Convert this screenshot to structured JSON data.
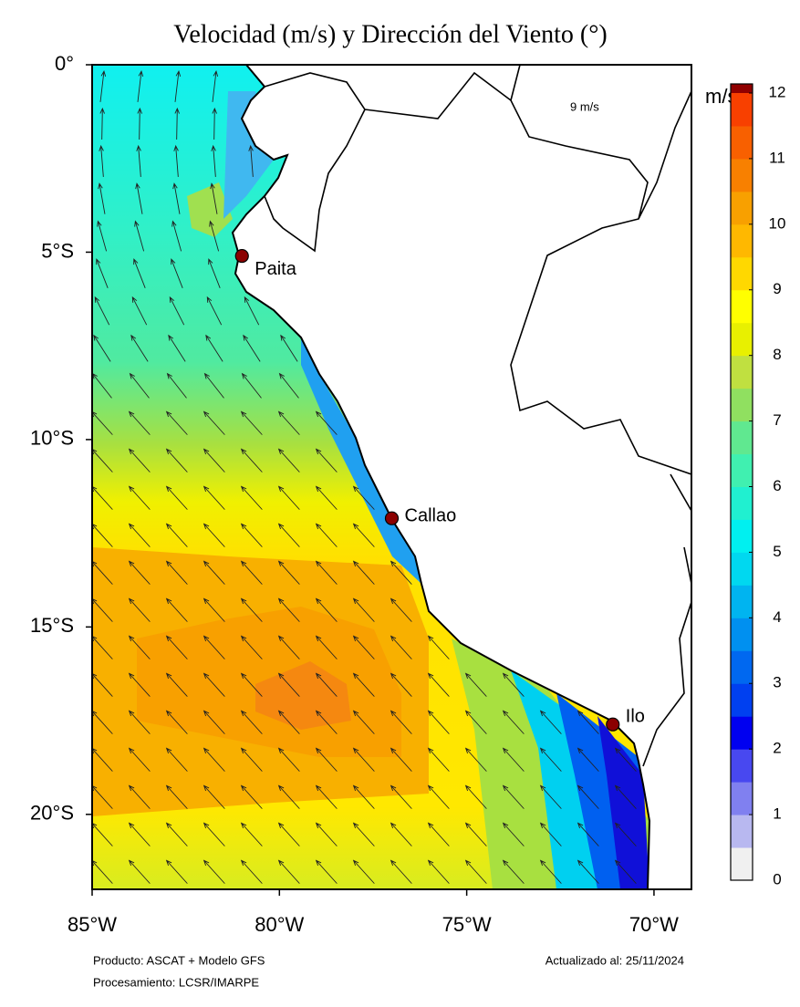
{
  "map": {
    "title": "Velocidad (m/s) y Dirección del Viento (°)",
    "xlim": [
      -85,
      -69
    ],
    "ylim": [
      -22,
      0
    ],
    "xticks": [
      {
        "value": -85,
        "label": "85°W"
      },
      {
        "value": -80,
        "label": "80°W"
      },
      {
        "value": -75,
        "label": "75°W"
      },
      {
        "value": -70,
        "label": "70°W"
      }
    ],
    "yticks": [
      {
        "value": 0,
        "label": "0°"
      },
      {
        "value": -5,
        "label": "5°S"
      },
      {
        "value": -10,
        "label": "10°S"
      },
      {
        "value": -15,
        "label": "15°S"
      },
      {
        "value": -20,
        "label": "20°S"
      }
    ],
    "cities": [
      {
        "name": "Paita",
        "lon": -81.0,
        "lat": -5.1
      },
      {
        "name": "Callao",
        "lon": -77.0,
        "lat": -12.1
      },
      {
        "name": "Ilo",
        "lon": -71.1,
        "lat": -17.6
      }
    ],
    "reference_arrow": "9 m/s",
    "colorbar": {
      "unit": "m/s",
      "lim": [
        0,
        12
      ],
      "ticks": [
        0,
        1,
        2,
        3,
        4,
        5,
        6,
        7,
        8,
        9,
        10,
        11,
        12
      ],
      "colors": [
        "#f0f0f0",
        "#b8b8f0",
        "#8080f0",
        "#4848f0",
        "#0000f0",
        "#0040f0",
        "#0068f0",
        "#0090f0",
        "#00b4f0",
        "#00d8f0",
        "#00f0f0",
        "#20f0d0",
        "#40f0b0",
        "#60e890",
        "#90e060",
        "#c0e040",
        "#e8f000",
        "#ffff00",
        "#ffd800",
        "#ffb800",
        "#f8a000",
        "#f88000",
        "#f86000",
        "#f84000"
      ]
    },
    "footer": {
      "product": "Producto: ASCAT + Modelo GFS",
      "processing": "Procesamiento: LCSR/IMARPE",
      "updated": "Actualizado al: 25/11/2024"
    }
  }
}
